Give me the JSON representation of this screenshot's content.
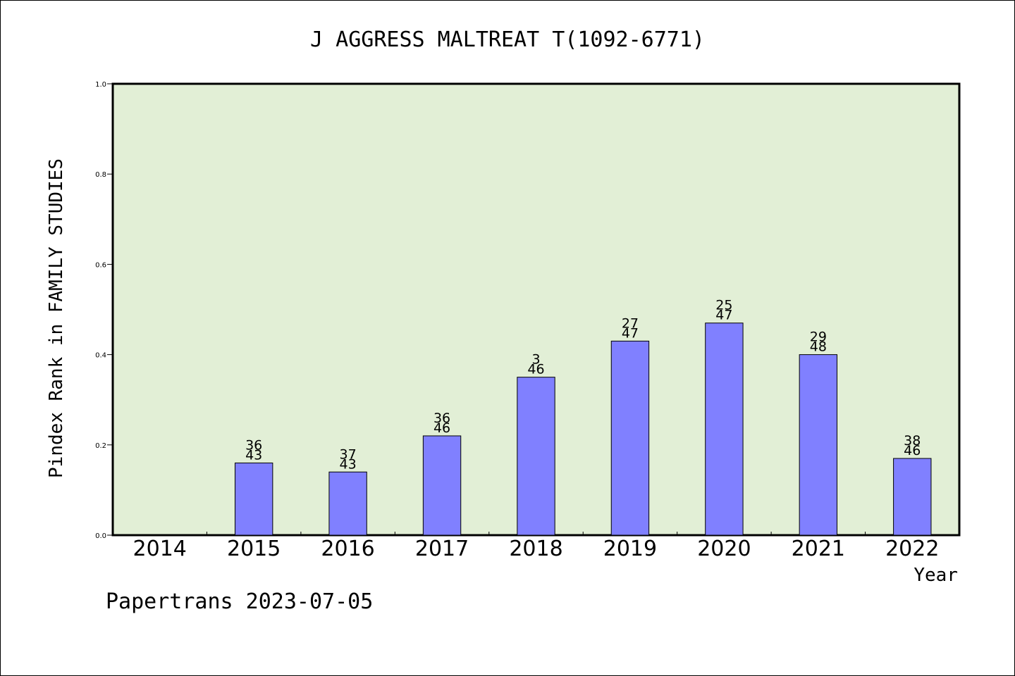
{
  "chart_data": {
    "type": "bar",
    "title": "J AGGRESS MALTREAT T(1092-6771)",
    "xlabel": "Year",
    "ylabel": "Pindex Rank in FAMILY STUDIES",
    "footer": "Papertrans 2023-07-05",
    "ylim": [
      0,
      1.0
    ],
    "yticks": [
      "0.0",
      "0.2",
      "0.4",
      "0.6",
      "0.8",
      "1.0"
    ],
    "ytick_values": [
      0,
      0.2,
      0.4,
      0.6,
      0.8,
      1.0
    ],
    "categories": [
      "2014",
      "2015",
      "2016",
      "2017",
      "2018",
      "2019",
      "2020",
      "2021",
      "2022"
    ],
    "values": [
      null,
      0.16,
      0.14,
      0.22,
      0.35,
      0.43,
      0.47,
      0.4,
      0.17
    ],
    "labels_top": [
      "",
      "36",
      "37",
      "36",
      "3",
      "27",
      "25",
      "29",
      "38"
    ],
    "labels_bottom": [
      "",
      "43",
      "43",
      "46",
      "46",
      "47",
      "47",
      "48",
      "46"
    ],
    "grid": false,
    "colors": {
      "plot_background": "#e2efd6",
      "bar_fill": "#8080ff",
      "bar_stroke": "#000000"
    }
  }
}
